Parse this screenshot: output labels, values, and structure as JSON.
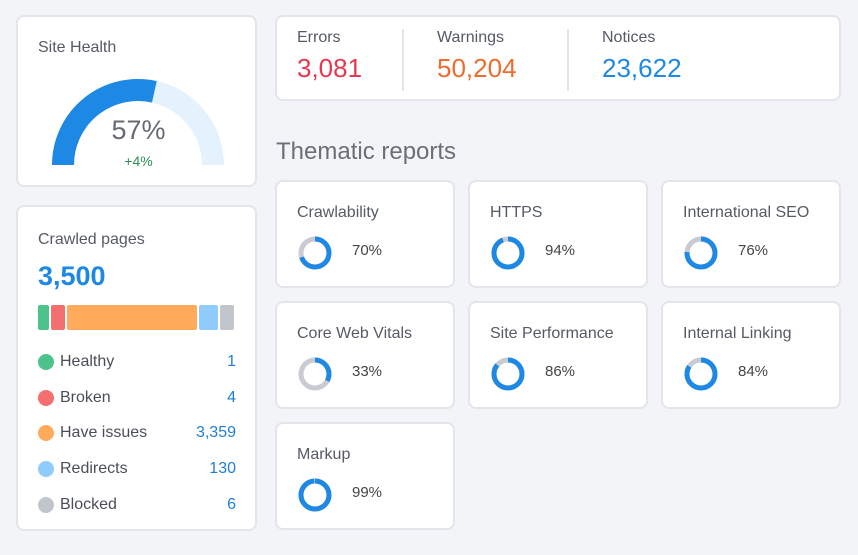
{
  "site_health": {
    "title": "Site Health",
    "value": "57%",
    "delta": "+4%",
    "fraction": 0.57
  },
  "issues": {
    "errors": {
      "label": "Errors",
      "value": "3,081",
      "color": "#e8384f"
    },
    "warnings": {
      "label": "Warnings",
      "value": "50,204",
      "color": "#f06b2e"
    },
    "notices": {
      "label": "Notices",
      "value": "23,622",
      "color": "#1e88e5"
    }
  },
  "crawled": {
    "title": "Crawled pages",
    "total": "3,500",
    "items": [
      {
        "label": "Healthy",
        "value": "1",
        "color": "#4cc38a"
      },
      {
        "label": "Broken",
        "value": "4",
        "color": "#f46f6f"
      },
      {
        "label": "Have issues",
        "value": "3,359",
        "color": "#ffab5b"
      },
      {
        "label": "Redirects",
        "value": "130",
        "color": "#8fcbfb"
      },
      {
        "label": "Blocked",
        "value": "6",
        "color": "#c2c5cc"
      }
    ]
  },
  "thematic": {
    "title": "Thematic reports",
    "reports": [
      {
        "label": "Crawlability",
        "value": "70%",
        "fraction": 0.7
      },
      {
        "label": "HTTPS",
        "value": "94%",
        "fraction": 0.94
      },
      {
        "label": "International SEO",
        "value": "76%",
        "fraction": 0.76
      },
      {
        "label": "Core Web Vitals",
        "value": "33%",
        "fraction": 0.33
      },
      {
        "label": "Site Performance",
        "value": "86%",
        "fraction": 0.86
      },
      {
        "label": "Internal Linking",
        "value": "84%",
        "fraction": 0.84
      },
      {
        "label": "Markup",
        "value": "99%",
        "fraction": 0.99
      }
    ]
  },
  "colors": {
    "accent": "#1e88e5",
    "track": "#c8cbd1",
    "gauge_track": "#e3f2fd"
  }
}
